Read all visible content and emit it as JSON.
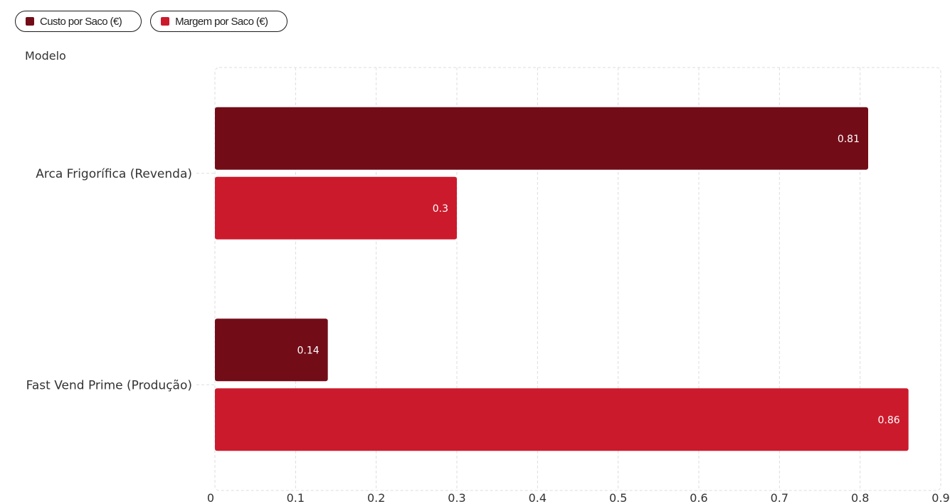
{
  "legend": {
    "items": [
      {
        "label": "Custo por Saco (€)",
        "color": "#720d18"
      },
      {
        "label": "Margem por Saco (€)",
        "color": "#cc1a2d"
      }
    ]
  },
  "chart_data": {
    "type": "bar",
    "orientation": "horizontal",
    "ylabel": "Modelo",
    "xlabel": "",
    "categories": [
      "Arca Frigorífica (Revenda)",
      "Fast Vend Prime (Produção)"
    ],
    "series": [
      {
        "name": "Custo por Saco (€)",
        "color": "#720d18",
        "values": [
          0.81,
          0.14
        ]
      },
      {
        "name": "Margem por Saco (€)",
        "color": "#cc1a2d",
        "values": [
          0.3,
          0.86
        ]
      }
    ],
    "xlim": [
      0,
      0.9
    ],
    "xticks": [
      "0",
      "0.1",
      "0.2",
      "0.3",
      "0.4",
      "0.5",
      "0.6",
      "0.7",
      "0.8",
      "0.9"
    ],
    "grid": true,
    "data_labels": true,
    "legend_position": "top-left"
  }
}
